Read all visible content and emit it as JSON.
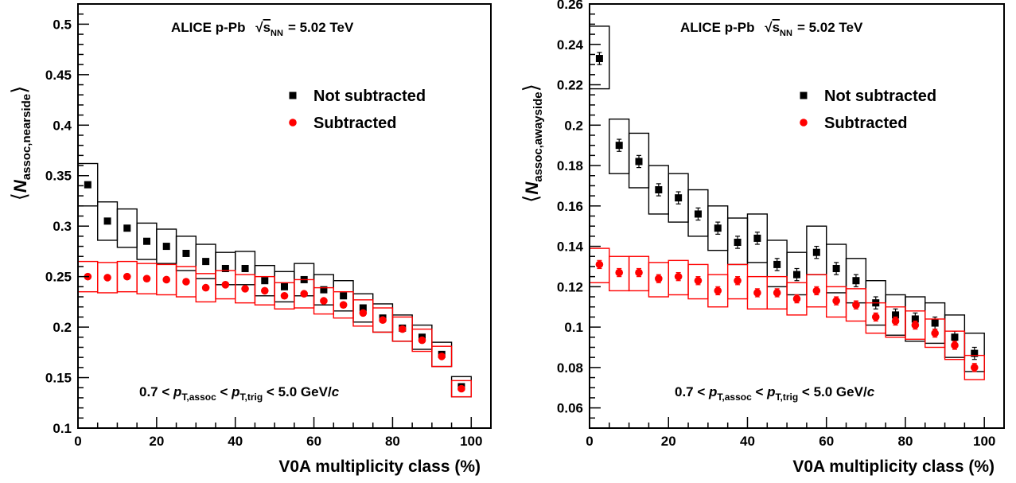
{
  "chart_data": [
    {
      "type": "scatter",
      "title": "ALICE p-Pb √sNN = 5.02 TeV",
      "title_parts": {
        "experiment": "ALICE p-Pb",
        "s": "s",
        "s_sub": "NN",
        "energy": "= 5.02 TeV"
      },
      "xlabel": "V0A multiplicity class (%)",
      "ylabel": {
        "main": "N",
        "sub": "assoc,nearside"
      },
      "xlim": [
        0,
        105
      ],
      "ylim": [
        0.1,
        0.52
      ],
      "xticks": [
        0,
        20,
        40,
        60,
        80,
        100
      ],
      "yticks": [
        0.1,
        0.15,
        0.2,
        0.25,
        0.3,
        0.35,
        0.4,
        0.45,
        0.5
      ],
      "ytick_labels": [
        "0.1",
        "0.15",
        "0.2",
        "0.25",
        "0.3",
        "0.35",
        "0.4",
        "0.45",
        "0.5"
      ],
      "cut_label": {
        "pre": "0.7 < ",
        "p1": "p",
        "s1": "T,assoc",
        "mid": " < ",
        "p2": "p",
        "s2": "T,trig",
        "post": " < 5.0 GeV/",
        "c": "c"
      },
      "legend_position": "top-right",
      "x": [
        2.5,
        7.5,
        12.5,
        17.5,
        22.5,
        27.5,
        32.5,
        37.5,
        42.5,
        47.5,
        52.5,
        57.5,
        62.5,
        67.5,
        72.5,
        77.5,
        82.5,
        87.5,
        92.5,
        97.5
      ],
      "series": [
        {
          "name": "Not subtracted",
          "color": "#000000",
          "marker": "square",
          "values": [
            0.341,
            0.305,
            0.298,
            0.285,
            0.28,
            0.273,
            0.265,
            0.258,
            0.258,
            0.246,
            0.24,
            0.247,
            0.237,
            0.231,
            0.219,
            0.209,
            0.199,
            0.19,
            0.173,
            0.141
          ],
          "sys_low": [
            0.32,
            0.286,
            0.279,
            0.267,
            0.263,
            0.256,
            0.248,
            0.242,
            0.242,
            0.231,
            0.225,
            0.231,
            0.222,
            0.216,
            0.205,
            0.195,
            0.186,
            0.178,
            0.161,
            0.131
          ],
          "sys_high": [
            0.362,
            0.324,
            0.317,
            0.303,
            0.297,
            0.29,
            0.282,
            0.274,
            0.275,
            0.261,
            0.255,
            0.263,
            0.252,
            0.246,
            0.233,
            0.223,
            0.212,
            0.202,
            0.185,
            0.151
          ]
        },
        {
          "name": "Subtracted",
          "color": "#ff0000",
          "marker": "circle",
          "values": [
            0.25,
            0.249,
            0.25,
            0.248,
            0.247,
            0.245,
            0.239,
            0.242,
            0.238,
            0.236,
            0.231,
            0.233,
            0.226,
            0.222,
            0.214,
            0.207,
            0.198,
            0.187,
            0.171,
            0.139
          ],
          "sys_low": [
            0.235,
            0.234,
            0.235,
            0.233,
            0.232,
            0.23,
            0.225,
            0.228,
            0.224,
            0.222,
            0.218,
            0.219,
            0.213,
            0.209,
            0.201,
            0.195,
            0.186,
            0.176,
            0.161,
            0.131
          ],
          "sys_high": [
            0.265,
            0.264,
            0.265,
            0.263,
            0.262,
            0.26,
            0.253,
            0.256,
            0.252,
            0.25,
            0.244,
            0.247,
            0.239,
            0.235,
            0.227,
            0.219,
            0.21,
            0.198,
            0.181,
            0.147
          ]
        }
      ]
    },
    {
      "type": "scatter",
      "title": "ALICE p-Pb √sNN = 5.02 TeV",
      "title_parts": {
        "experiment": "ALICE p-Pb",
        "s": "s",
        "s_sub": "NN",
        "energy": "= 5.02 TeV"
      },
      "xlabel": "V0A multiplicity class (%)",
      "ylabel": {
        "main": "N",
        "sub": "assoc,awayside"
      },
      "xlim": [
        0,
        105
      ],
      "ylim": [
        0.05,
        0.26
      ],
      "xticks": [
        0,
        20,
        40,
        60,
        80,
        100
      ],
      "yticks": [
        0.06,
        0.08,
        0.1,
        0.12,
        0.14,
        0.16,
        0.18,
        0.2,
        0.22,
        0.24,
        0.26
      ],
      "ytick_labels": [
        "0.06",
        "0.08",
        "0.1",
        "0.12",
        "0.14",
        "0.16",
        "0.18",
        "0.2",
        "0.22",
        "0.24",
        "0.26"
      ],
      "cut_label": {
        "pre": "0.7 < ",
        "p1": "p",
        "s1": "T,assoc",
        "mid": " < ",
        "p2": "p",
        "s2": "T,trig",
        "post": " < 5.0 GeV/",
        "c": "c"
      },
      "legend_position": "top-right",
      "x": [
        2.5,
        7.5,
        12.5,
        17.5,
        22.5,
        27.5,
        32.5,
        37.5,
        42.5,
        47.5,
        52.5,
        57.5,
        62.5,
        67.5,
        72.5,
        77.5,
        82.5,
        87.5,
        92.5,
        97.5
      ],
      "series": [
        {
          "name": "Not subtracted",
          "color": "#000000",
          "marker": "square",
          "values": [
            0.233,
            0.19,
            0.182,
            0.168,
            0.164,
            0.156,
            0.149,
            0.142,
            0.144,
            0.131,
            0.126,
            0.137,
            0.129,
            0.123,
            0.112,
            0.106,
            0.104,
            0.102,
            0.095,
            0.087
          ],
          "stat": [
            0.003,
            0.003,
            0.003,
            0.003,
            0.003,
            0.003,
            0.003,
            0.003,
            0.003,
            0.003,
            0.003,
            0.003,
            0.003,
            0.003,
            0.003,
            0.003,
            0.003,
            0.003,
            0.003,
            0.003
          ],
          "sys_low": [
            0.218,
            0.176,
            0.169,
            0.156,
            0.152,
            0.145,
            0.138,
            0.131,
            0.132,
            0.12,
            0.116,
            0.126,
            0.117,
            0.112,
            0.101,
            0.096,
            0.093,
            0.092,
            0.085,
            0.078
          ],
          "sys_high": [
            0.249,
            0.203,
            0.196,
            0.18,
            0.176,
            0.168,
            0.16,
            0.154,
            0.156,
            0.143,
            0.137,
            0.15,
            0.141,
            0.134,
            0.123,
            0.116,
            0.115,
            0.112,
            0.106,
            0.097
          ]
        },
        {
          "name": "Subtracted",
          "color": "#ff0000",
          "marker": "circle",
          "values": [
            0.131,
            0.127,
            0.127,
            0.124,
            0.125,
            0.123,
            0.118,
            0.123,
            0.117,
            0.117,
            0.114,
            0.118,
            0.113,
            0.111,
            0.105,
            0.103,
            0.101,
            0.097,
            0.091,
            0.08
          ],
          "stat": [
            0.002,
            0.002,
            0.002,
            0.002,
            0.002,
            0.002,
            0.002,
            0.002,
            0.002,
            0.002,
            0.002,
            0.002,
            0.002,
            0.002,
            0.002,
            0.002,
            0.002,
            0.002,
            0.002,
            0.002
          ],
          "sys_low": [
            0.122,
            0.118,
            0.118,
            0.115,
            0.116,
            0.114,
            0.11,
            0.114,
            0.109,
            0.109,
            0.106,
            0.11,
            0.105,
            0.103,
            0.097,
            0.095,
            0.094,
            0.09,
            0.084,
            0.074
          ],
          "sys_high": [
            0.139,
            0.135,
            0.135,
            0.132,
            0.133,
            0.131,
            0.126,
            0.131,
            0.125,
            0.125,
            0.122,
            0.126,
            0.12,
            0.119,
            0.112,
            0.11,
            0.108,
            0.104,
            0.098,
            0.086
          ]
        }
      ]
    }
  ]
}
